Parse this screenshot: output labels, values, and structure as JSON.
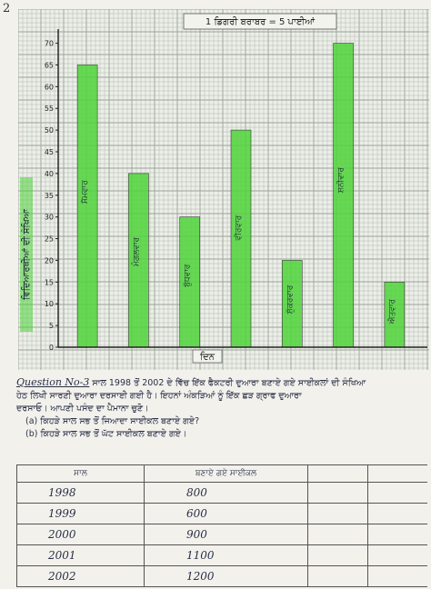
{
  "page_number": "2",
  "chart_data": {
    "type": "bar",
    "title": "1 ਡਿਗਰੀ ਬਰਾਬਰ = 5 ਪਾਈਆਂ",
    "xlabel": "ਦਿਨ",
    "ylabel": "ਵਿਦਿਆਰਥੀਆਂ ਦੀ ਸੰਖਿਆ",
    "categories": [
      "ਸੋਮਵਾਰ",
      "ਮੰਗਲਵਾਰ",
      "ਬੁੱਧਵਾਰ",
      "ਵੀਰਵਾਰ",
      "ਸ਼ੁੱਕਰਵਾਰ",
      "ਸ਼ਨੀਵਾਰ",
      "ਐਤਵਾਰ"
    ],
    "values": [
      65,
      40,
      30,
      50,
      20,
      70,
      15
    ],
    "yticks": [
      0,
      5,
      10,
      15,
      20,
      25,
      30,
      35,
      40,
      45,
      50,
      55,
      60,
      65,
      70
    ],
    "ylim": [
      0,
      72
    ],
    "grid": true,
    "bar_color": "#4fd43a",
    "grid_color": "#9aa39a"
  },
  "question": {
    "label": "Question No-3",
    "line1": "ਸਾਲ 1998 ਤੋਂ 2002 ਦੇ ਵਿੱਚ ਇੱਕ ਫੈਕਟਰੀ ਦੁਆਰਾ ਬਣਾਏ ਗਏ ਸਾਈਕਲਾਂ ਦੀ ਸੰਖਿਆ",
    "line2": "ਹੇਠ ਲਿਖੀ ਸਾਰਣੀ ਦੁਆਰਾ ਦਰਸਾਈ ਗਈ ਹੈ। ਇਹਨਾਂ ਅੰਕੜਿਆਂ ਨੂੰ ਇੱਕ ਛੜ ਗ੍ਰਾਫ ਦੁਆਰਾ",
    "line3": "ਦਰਸਾਓ। ਆਪਣੀ ਪਸੰਦ ਦਾ ਪੈਮਾਨਾ ਚੁਣੋ।",
    "part_a": "(a) ਕਿਹੜੇ ਸਾਲ ਸਭ ਤੋਂ ਜਿਆਦਾ ਸਾਈਕਲ ਬਣਾਏ ਗਏ?",
    "part_b": "(b) ਕਿਹੜੇ ਸਾਲ ਸਭ ਤੋਂ ਘੱਟ ਸਾਈਕਲ ਬਣਾਏ ਗਏ।"
  },
  "table": {
    "col_year": "ਸਾਲ",
    "col_count": "ਬਣਾਏ ਗਏ ਸਾਈਕਲ",
    "rows": [
      {
        "year": "1998",
        "count": "800"
      },
      {
        "year": "1999",
        "count": "600"
      },
      {
        "year": "2000",
        "count": "900"
      },
      {
        "year": "2001",
        "count": "1100"
      },
      {
        "year": "2002",
        "count": "1200"
      }
    ]
  }
}
